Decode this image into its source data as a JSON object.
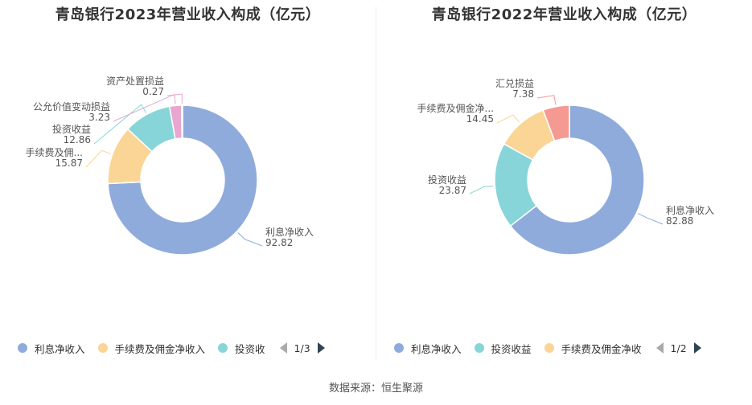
{
  "source": "数据来源：恒生聚源",
  "colors": {
    "利息净收入": "#8eabdc",
    "手续费及佣金净收入": "#fbd595",
    "投资收益": "#87d5d8",
    "公允价值变动损益": "#e9a6d0",
    "资产处置损益": "#e9a6d0",
    "汇兑损益": "#f59a92"
  },
  "chart_data": [
    {
      "type": "pie",
      "title": "青岛银行2023年营业收入构成（亿元）",
      "slices": [
        {
          "name": "利息净收入",
          "label": "利息净收入",
          "value": 92.82
        },
        {
          "name": "手续费及佣金净收入",
          "label": "手续费及佣...",
          "value": 15.87
        },
        {
          "name": "投资收益",
          "label": "投资收益",
          "value": 12.86
        },
        {
          "name": "公允价值变动损益",
          "label": "公允价值变动损益",
          "value": 3.23
        },
        {
          "name": "资产处置损益",
          "label": "资产处置损益",
          "value": 0.27
        }
      ],
      "legend": {
        "items": [
          "利息净收入",
          "手续费及佣金净收入",
          "投资收"
        ],
        "page": "1/3",
        "position": "bottom"
      }
    },
    {
      "type": "pie",
      "title": "青岛银行2022年营业收入构成（亿元）",
      "slices": [
        {
          "name": "利息净收入",
          "label": "利息净收入",
          "value": 82.88
        },
        {
          "name": "投资收益",
          "label": "投资收益",
          "value": 23.87
        },
        {
          "name": "手续费及佣金净收入",
          "label": "手续费及佣金净...",
          "value": 14.45
        },
        {
          "name": "汇兑损益",
          "label": "汇兑损益",
          "value": 7.38
        }
      ],
      "legend": {
        "items": [
          "利息净收入",
          "投资收益",
          "手续费及佣金净收"
        ],
        "page": "1/2",
        "position": "bottom"
      }
    }
  ]
}
